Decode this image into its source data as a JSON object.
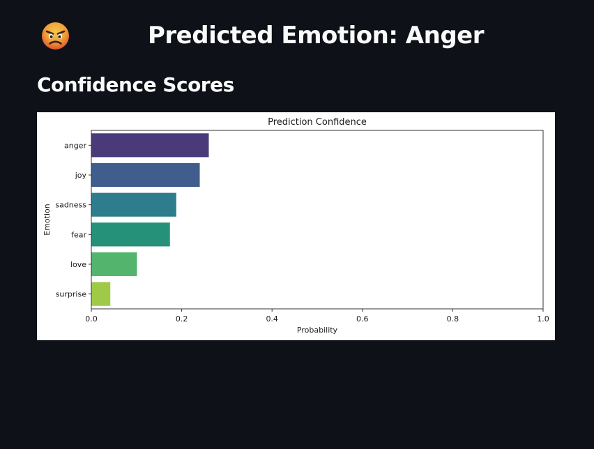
{
  "header": {
    "emoji_icon": "angry-face-icon",
    "title": "Predicted Emotion: Anger"
  },
  "section": {
    "title": "Confidence Scores"
  },
  "colors": {
    "page_background": "#0e1117",
    "text": "#fafafa",
    "emoji_face": "#f5b23c",
    "emoji_angry": "#e0552e"
  },
  "chart_data": {
    "type": "bar",
    "orientation": "horizontal",
    "title": "Prediction Confidence",
    "xlabel": "Probability",
    "ylabel": "Emotion",
    "xlim": [
      0,
      1.0
    ],
    "xticks": [
      "0.0",
      "0.2",
      "0.4",
      "0.6",
      "0.8",
      "1.0"
    ],
    "xtick_values": [
      0,
      0.2,
      0.4,
      0.6,
      0.8,
      1.0
    ],
    "categories": [
      "anger",
      "joy",
      "sadness",
      "fear",
      "love",
      "surprise"
    ],
    "values": [
      0.26,
      0.24,
      0.188,
      0.174,
      0.101,
      0.042
    ],
    "bar_colors": [
      "#4a3a7a",
      "#3f5d8d",
      "#2e7d8c",
      "#259179",
      "#52b46d",
      "#9fca48"
    ],
    "grid": false,
    "legend": "none"
  }
}
